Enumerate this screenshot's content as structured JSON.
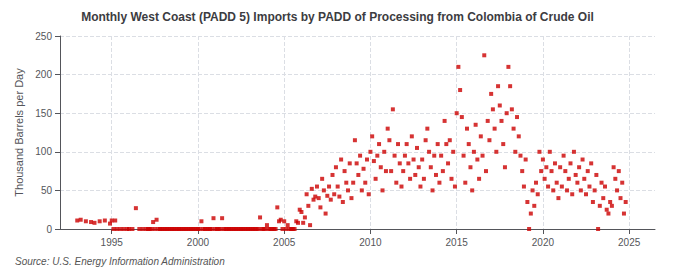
{
  "chart_data": {
    "type": "scatter",
    "title": "Monthly West Coast (PADD 5) Imports by PADD of Processing from Colombia of Crude Oil",
    "ylabel": "Thousand Barrels per Day",
    "annotations": [
      "Source: U.S. Energy Information Administration"
    ],
    "color": "#CC0000",
    "marker": "square",
    "grid": true,
    "xlim": [
      1992.0,
      2026.5
    ],
    "ylim": [
      0,
      250
    ],
    "xticks": [
      1995,
      2000,
      2005,
      2010,
      2015,
      2020,
      2025
    ],
    "yticks": [
      0,
      50,
      100,
      150,
      200,
      250
    ],
    "x": [
      1993.0,
      1993.2,
      1993.5,
      1993.8,
      1994.0,
      1994.3,
      1994.6,
      1994.9,
      1995.0,
      1995.1,
      1995.2,
      1995.3,
      1995.5,
      1995.7,
      1995.9,
      1996.0,
      1996.2,
      1996.4,
      1996.6,
      1996.8,
      1997.0,
      1997.2,
      1997.4,
      1997.6,
      1997.8,
      1997.1,
      1997.3,
      1997.5,
      1997.7,
      1997.9,
      1998.0,
      1998.2,
      1998.4,
      1998.6,
      1998.8,
      1998.1,
      1998.3,
      1998.5,
      1998.7,
      1998.9,
      1999.0,
      1999.2,
      1999.4,
      1999.6,
      1999.8,
      1999.1,
      1999.3,
      1999.5,
      1999.7,
      1999.9,
      2000.0,
      2000.2,
      2000.4,
      2000.6,
      2000.8,
      2000.1,
      2000.3,
      2000.5,
      2000.7,
      2000.9,
      2001.0,
      2001.2,
      2001.4,
      2001.6,
      2001.8,
      2001.1,
      2001.3,
      2001.5,
      2001.7,
      2001.9,
      2002.0,
      2002.2,
      2002.4,
      2002.6,
      2002.8,
      2002.1,
      2002.3,
      2002.5,
      2002.7,
      2002.9,
      2003.0,
      2003.2,
      2003.4,
      2003.6,
      2003.8,
      2003.1,
      2003.3,
      2003.5,
      2003.7,
      2003.9,
      2004.0,
      2004.2,
      2004.4,
      2004.6,
      2004.8,
      2004.1,
      2004.3,
      2004.5,
      2004.7,
      2004.9,
      2005.0,
      2005.1,
      2005.2,
      2005.4,
      2005.6,
      2005.8,
      2005.3,
      2005.5,
      2005.7,
      2005.9,
      2006.0,
      2006.1,
      2006.2,
      2006.3,
      2006.4,
      2006.5,
      2006.6,
      2006.7,
      2006.8,
      2006.9,
      2007.0,
      2007.1,
      2007.2,
      2007.3,
      2007.4,
      2007.5,
      2007.6,
      2007.7,
      2007.8,
      2007.9,
      2008.0,
      2008.1,
      2008.2,
      2008.3,
      2008.4,
      2008.5,
      2008.6,
      2008.7,
      2008.8,
      2008.9,
      2009.0,
      2009.1,
      2009.2,
      2009.3,
      2009.4,
      2009.5,
      2009.6,
      2009.7,
      2009.8,
      2009.9,
      2010.0,
      2010.1,
      2010.2,
      2010.3,
      2010.4,
      2010.5,
      2010.6,
      2010.7,
      2010.8,
      2010.9,
      2011.0,
      2011.1,
      2011.2,
      2011.3,
      2011.4,
      2011.5,
      2011.6,
      2011.7,
      2011.8,
      2011.9,
      2012.0,
      2012.1,
      2012.2,
      2012.3,
      2012.4,
      2012.5,
      2012.6,
      2012.7,
      2012.8,
      2012.9,
      2013.0,
      2013.1,
      2013.2,
      2013.3,
      2013.4,
      2013.5,
      2013.6,
      2013.7,
      2013.8,
      2013.9,
      2014.0,
      2014.1,
      2014.2,
      2014.3,
      2014.4,
      2014.5,
      2014.6,
      2014.7,
      2014.8,
      2014.9,
      2015.0,
      2015.1,
      2015.2,
      2015.3,
      2015.4,
      2015.5,
      2015.6,
      2015.7,
      2015.8,
      2015.9,
      2016.0,
      2016.1,
      2016.2,
      2016.3,
      2016.4,
      2016.5,
      2016.6,
      2016.7,
      2016.8,
      2016.9,
      2017.0,
      2017.1,
      2017.2,
      2017.3,
      2017.4,
      2017.5,
      2017.6,
      2017.7,
      2017.8,
      2017.9,
      2018.0,
      2018.1,
      2018.2,
      2018.3,
      2018.4,
      2018.5,
      2018.6,
      2018.7,
      2018.8,
      2018.9,
      2019.0,
      2019.1,
      2019.2,
      2019.3,
      2019.4,
      2019.5,
      2019.6,
      2019.7,
      2019.8,
      2019.9,
      2020.0,
      2020.1,
      2020.2,
      2020.3,
      2020.4,
      2020.5,
      2020.6,
      2020.7,
      2020.8,
      2020.9,
      2021.0,
      2021.1,
      2021.2,
      2021.3,
      2021.4,
      2021.5,
      2021.6,
      2021.7,
      2021.8,
      2021.9,
      2022.0,
      2022.1,
      2022.2,
      2022.3,
      2022.4,
      2022.5,
      2022.6,
      2022.7,
      2022.8,
      2022.9,
      2023.0,
      2023.1,
      2023.2,
      2023.3,
      2023.4,
      2023.5,
      2023.6,
      2023.7,
      2023.8,
      2023.9,
      2024.0,
      2024.1,
      2024.2,
      2024.3,
      2024.4,
      2024.5,
      2024.6,
      2024.7,
      2024.8
    ],
    "values": [
      11,
      12,
      10,
      9,
      8,
      10,
      11,
      7,
      11,
      0,
      11,
      0,
      0,
      0,
      0,
      0,
      0,
      27,
      0,
      0,
      0,
      0,
      9,
      12,
      0,
      0,
      0,
      0,
      0,
      0,
      0,
      0,
      0,
      0,
      0,
      0,
      0,
      0,
      0,
      0,
      0,
      0,
      0,
      0,
      0,
      0,
      0,
      0,
      0,
      0,
      0,
      10,
      0,
      0,
      0,
      0,
      0,
      0,
      0,
      14,
      0,
      0,
      14,
      0,
      0,
      0,
      0,
      0,
      0,
      0,
      0,
      0,
      0,
      0,
      0,
      0,
      0,
      0,
      0,
      0,
      0,
      0,
      0,
      15,
      0,
      0,
      0,
      0,
      0,
      0,
      5,
      0,
      0,
      28,
      12,
      0,
      0,
      0,
      10,
      0,
      10,
      0,
      5,
      0,
      0,
      8,
      0,
      0,
      10,
      25,
      22,
      8,
      15,
      45,
      30,
      5,
      52,
      38,
      42,
      55,
      40,
      28,
      65,
      50,
      20,
      43,
      55,
      38,
      70,
      45,
      80,
      55,
      42,
      90,
      35,
      75,
      60,
      50,
      85,
      40,
      60,
      115,
      85,
      70,
      95,
      50,
      78,
      60,
      90,
      45,
      100,
      120,
      88,
      65,
      95,
      110,
      80,
      50,
      100,
      75,
      130,
      115,
      75,
      155,
      95,
      60,
      110,
      85,
      55,
      75,
      95,
      110,
      85,
      65,
      120,
      90,
      70,
      105,
      80,
      55,
      90,
      65,
      115,
      130,
      100,
      80,
      50,
      95,
      70,
      110,
      60,
      95,
      75,
      140,
      110,
      85,
      115,
      65,
      100,
      55,
      150,
      210,
      180,
      145,
      95,
      60,
      130,
      110,
      80,
      50,
      100,
      135,
      90,
      65,
      120,
      95,
      225,
      75,
      140,
      115,
      175,
      155,
      130,
      100,
      185,
      160,
      140,
      110,
      80,
      150,
      210,
      185,
      155,
      130,
      100,
      145,
      120,
      95,
      75,
      55,
      90,
      35,
      0,
      20,
      50,
      30,
      60,
      45,
      100,
      75,
      90,
      65,
      80,
      55,
      100,
      75,
      50,
      85,
      60,
      40,
      80,
      55,
      95,
      75,
      50,
      65,
      85,
      45,
      100,
      70,
      60,
      80,
      50,
      90,
      65,
      45,
      75,
      55,
      85,
      35,
      50,
      70,
      0,
      30,
      60,
      40,
      55,
      25,
      20,
      35,
      30,
      80,
      65,
      50,
      75,
      40,
      60,
      20,
      35
    ]
  }
}
